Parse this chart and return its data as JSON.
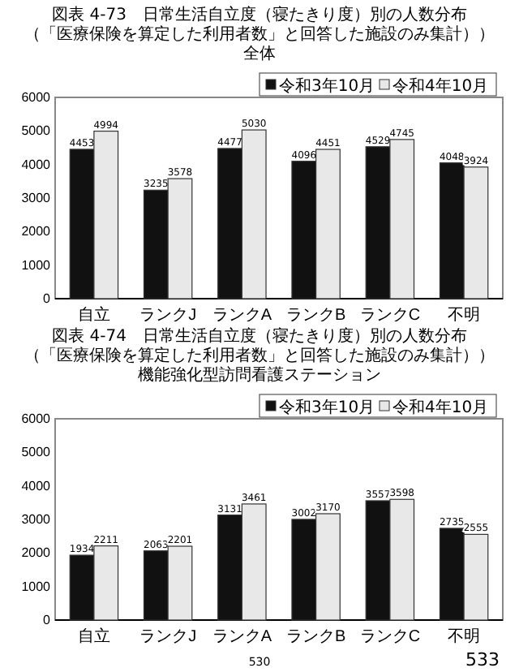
{
  "chart_data": [
    {
      "type": "bar",
      "title": "図表 4-73　日常生活自立度（寝たきり度）別の人数分布",
      "subtitle": "（「医療保険を算定した利用者数」と回答した施設のみ集計））全体",
      "categories": [
        "自立",
        "ランクJ",
        "ランクA",
        "ランクB",
        "ランクC",
        "不明"
      ],
      "series": [
        {
          "name": "令和3年10月",
          "color": "#111111",
          "values": [
            4453,
            3235,
            4477,
            4096,
            4529,
            4048
          ]
        },
        {
          "name": "令和4年10月",
          "color": "#e8e8e8",
          "values": [
            4994,
            3578,
            5030,
            4451,
            4745,
            3924
          ]
        }
      ],
      "ylim": [
        0,
        6000
      ],
      "yticks": [
        0,
        1000,
        2000,
        3000,
        4000,
        5000,
        6000
      ],
      "data_labels": true,
      "legend": "top right",
      "grid": false
    },
    {
      "type": "bar",
      "title": "図表 4-74　日常生活自立度（寝たきり度）別の人数分布",
      "subtitle": "（「医療保険を算定した利用者数」と回答した施設のみ集計））機能強化型訪問看護ステーション",
      "categories": [
        "自立",
        "ランクJ",
        "ランクA",
        "ランクB",
        "ランクC",
        "不明"
      ],
      "series": [
        {
          "name": "令和3年10月",
          "color": "#111111",
          "values": [
            1934,
            2063,
            3131,
            3002,
            3557,
            2735
          ]
        },
        {
          "name": "令和4年10月",
          "color": "#e8e8e8",
          "values": [
            2211,
            2201,
            3461,
            3170,
            3598,
            2555
          ]
        }
      ],
      "ylim": [
        0,
        6000
      ],
      "yticks": [
        0,
        1000,
        2000,
        3000,
        4000,
        5000,
        6000
      ],
      "data_labels": true,
      "legend": "top right",
      "grid": false,
      "annotations": [
        "530",
        "533"
      ]
    }
  ]
}
